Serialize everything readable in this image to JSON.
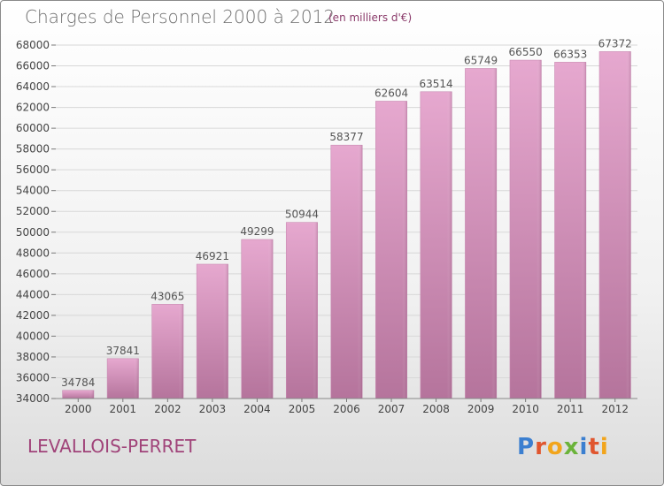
{
  "header": {
    "title": "Charges de Personnel 2000 à 2012",
    "unit_note": "(en milliers d'€)"
  },
  "footer": {
    "commune": "LEVALLOIS-PERRET",
    "logo_text": "Proxiti"
  },
  "colors": {
    "bar_light": "#e6a8cf",
    "bar_dark": "#b5749c",
    "grid": "#d8d8d8",
    "axis_text": "#444444",
    "title": "#6d6d6d",
    "accent": "#a04379"
  },
  "chart_data": {
    "type": "bar",
    "categories": [
      "2000",
      "2001",
      "2002",
      "2003",
      "2004",
      "2005",
      "2006",
      "2007",
      "2008",
      "2009",
      "2010",
      "2011",
      "2012"
    ],
    "values": [
      34784,
      37841,
      43065,
      46921,
      49299,
      50944,
      58377,
      62604,
      63514,
      65749,
      66550,
      66353,
      67372
    ],
    "data_labels": [
      "34784",
      "37841",
      "43065",
      "46921",
      "49299",
      "50944",
      "58377",
      "62604",
      "63514",
      "65749",
      "66550",
      "66353",
      "67372"
    ],
    "ylim": [
      34000,
      68000
    ],
    "yticks": [
      34000,
      36000,
      38000,
      40000,
      42000,
      44000,
      46000,
      48000,
      50000,
      52000,
      54000,
      56000,
      58000,
      60000,
      62000,
      64000,
      66000,
      68000
    ],
    "grid": true,
    "legend": "none"
  }
}
